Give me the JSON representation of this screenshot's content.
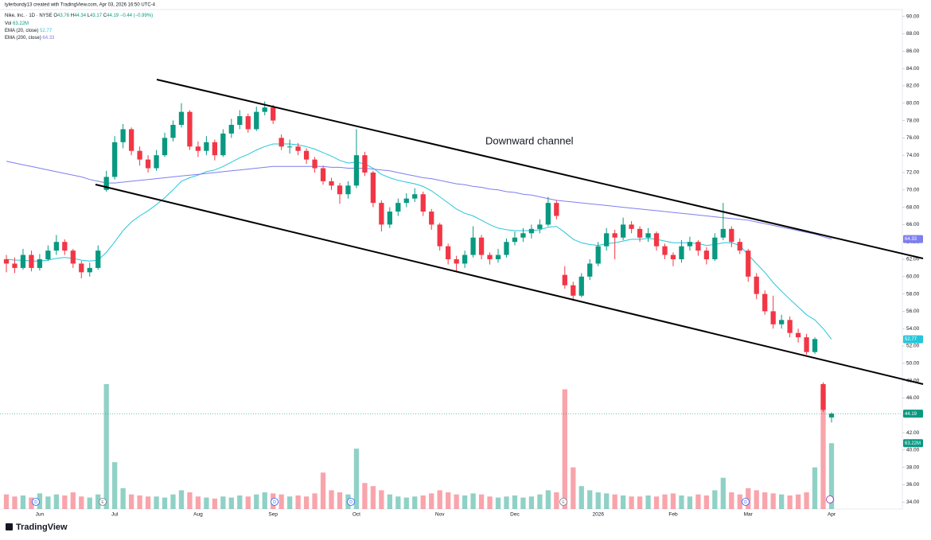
{
  "header": {
    "credit": "tylerbundy13 created with TradingView.com, Apr 03, 2026 16:50 UTC-4",
    "symbol": "Nike, Inc. · 1D · NYSE",
    "o": "O",
    "h": "H",
    "l": "L",
    "c": "C",
    "change": "−0.44 (−0.99%)",
    "brand": "TradingView"
  },
  "events": [
    "D",
    "E",
    "D",
    "D",
    "E",
    "D"
  ],
  "chart_data": {
    "type": "candlestick",
    "annotation": "Downward channel",
    "up_color": "#089981",
    "down_color": "#f23645",
    "categories": [
      null,
      null,
      null,
      null,
      "Jun",
      null,
      null,
      null,
      null,
      null,
      null,
      null,
      null,
      "Jul",
      null,
      null,
      null,
      null,
      null,
      null,
      null,
      null,
      null,
      "Aug",
      null,
      null,
      null,
      null,
      null,
      null,
      null,
      null,
      "Sep",
      null,
      null,
      null,
      null,
      null,
      null,
      null,
      null,
      null,
      "Oct",
      null,
      null,
      null,
      null,
      null,
      null,
      null,
      null,
      null,
      "Nov",
      null,
      null,
      null,
      null,
      null,
      null,
      null,
      null,
      "Dec",
      null,
      null,
      null,
      null,
      null,
      null,
      null,
      null,
      null,
      "2026",
      null,
      null,
      null,
      null,
      null,
      null,
      null,
      null,
      "Feb",
      null,
      null,
      null,
      null,
      null,
      null,
      null,
      null,
      "Mar",
      null,
      null,
      null,
      null,
      null,
      null,
      null,
      null,
      null,
      "Apr"
    ],
    "open": [
      62.0,
      61.5,
      61.0,
      62.5,
      61.0,
      62.0,
      63.0,
      64.0,
      63.0,
      61.5,
      60.5,
      61.0,
      70.0,
      71.5,
      75.5,
      77.0,
      74.5,
      73.5,
      72.5,
      74.0,
      76.0,
      77.5,
      79.0,
      75.0,
      74.5,
      75.5,
      74.0,
      76.5,
      77.5,
      78.5,
      77.0,
      79.0,
      79.5,
      76.0,
      75.0,
      75.0,
      74.5,
      73.5,
      72.5,
      71.0,
      70.5,
      69.5,
      70.5,
      74.0,
      72.0,
      68.5,
      66.0,
      67.5,
      68.5,
      69.0,
      69.5,
      67.5,
      66.0,
      63.5,
      62.0,
      61.5,
      62.5,
      64.5,
      62.5,
      62.0,
      62.5,
      64.0,
      64.5,
      65.0,
      65.5,
      66.0,
      68.5,
      60.2,
      59.0,
      57.8,
      60.0,
      61.5,
      63.5,
      65.0,
      64.5,
      66.0,
      65.5,
      64.5,
      65.0,
      63.5,
      62.5,
      62.0,
      63.5,
      64.0,
      63.0,
      62.0,
      64.5,
      65.5,
      64.0,
      63.0,
      60.0,
      58.0,
      56.0,
      54.5,
      55.0,
      53.5,
      53.0,
      51.3,
      47.6,
      43.76
    ],
    "high": [
      62.5,
      62.2,
      63.2,
      63.0,
      62.6,
      63.6,
      64.8,
      64.3,
      63.2,
      61.8,
      61.6,
      63.6,
      72.2,
      76.2,
      77.6,
      77.2,
      75.0,
      74.0,
      74.6,
      76.6,
      78.0,
      80.0,
      79.2,
      75.6,
      76.2,
      75.8,
      77.0,
      78.2,
      79.2,
      78.8,
      79.6,
      80.2,
      79.8,
      76.4,
      75.8,
      75.4,
      74.8,
      73.8,
      72.8,
      71.4,
      70.8,
      71.0,
      77.0,
      74.4,
      72.2,
      68.8,
      68.0,
      69.0,
      69.6,
      70.2,
      69.8,
      67.8,
      66.2,
      63.8,
      62.4,
      63.0,
      65.8,
      64.8,
      62.8,
      63.2,
      64.4,
      65.2,
      65.6,
      66.0,
      66.6,
      69.2,
      68.8,
      61.2,
      59.4,
      60.4,
      62.0,
      64.0,
      65.6,
      65.4,
      66.8,
      66.4,
      65.8,
      65.6,
      65.2,
      63.8,
      62.8,
      64.2,
      64.6,
      64.2,
      63.4,
      65.0,
      68.5,
      65.8,
      64.4,
      63.2,
      60.4,
      58.4,
      57.8,
      55.6,
      55.4,
      54.0,
      53.4,
      53.0,
      47.8,
      44.34
    ],
    "low": [
      60.5,
      60.4,
      60.8,
      60.6,
      60.7,
      61.8,
      62.5,
      62.5,
      61.0,
      59.8,
      60.0,
      60.8,
      69.8,
      71.2,
      74.8,
      74.0,
      72.8,
      72.0,
      72.2,
      73.8,
      75.6,
      77.2,
      74.6,
      73.8,
      74.0,
      73.4,
      73.8,
      76.0,
      77.0,
      76.6,
      76.8,
      78.6,
      77.6,
      74.6,
      74.2,
      74.0,
      73.0,
      72.0,
      70.6,
      70.0,
      68.4,
      69.0,
      70.2,
      71.6,
      68.0,
      65.2,
      65.6,
      67.0,
      68.0,
      68.6,
      67.0,
      65.4,
      63.0,
      61.4,
      60.6,
      61.0,
      62.2,
      62.0,
      61.4,
      61.6,
      62.2,
      63.6,
      64.0,
      64.4,
      65.0,
      65.8,
      66.6,
      58.6,
      57.2,
      57.6,
      59.6,
      61.2,
      63.0,
      62.0,
      64.2,
      65.0,
      64.0,
      64.0,
      63.0,
      62.0,
      61.2,
      61.6,
      63.0,
      62.4,
      61.4,
      61.8,
      64.2,
      63.4,
      62.6,
      59.4,
      57.4,
      55.6,
      54.0,
      54.0,
      53.0,
      52.4,
      51.0,
      51.1,
      44.4,
      43.17
    ],
    "close": [
      61.5,
      61.0,
      62.5,
      61.0,
      62.0,
      63.0,
      64.0,
      63.0,
      61.5,
      60.5,
      61.0,
      63.0,
      71.5,
      75.5,
      77.0,
      74.5,
      73.5,
      72.5,
      74.0,
      76.0,
      77.5,
      79.0,
      75.0,
      74.5,
      75.5,
      74.0,
      76.5,
      77.5,
      78.5,
      77.0,
      79.0,
      79.5,
      78.0,
      75.0,
      75.0,
      74.5,
      73.5,
      72.5,
      71.0,
      70.5,
      69.5,
      70.5,
      74.0,
      72.0,
      68.5,
      66.0,
      67.5,
      68.5,
      69.0,
      69.5,
      67.5,
      66.0,
      63.5,
      62.0,
      61.5,
      62.5,
      64.5,
      62.5,
      62.0,
      62.5,
      64.0,
      64.5,
      65.0,
      65.5,
      66.0,
      68.5,
      67.0,
      59.0,
      57.8,
      60.0,
      61.5,
      63.5,
      65.0,
      64.5,
      66.0,
      65.5,
      64.5,
      65.0,
      63.5,
      62.5,
      62.0,
      63.5,
      64.0,
      63.0,
      62.0,
      64.5,
      65.5,
      64.0,
      63.0,
      60.0,
      58.0,
      56.0,
      54.5,
      55.0,
      53.5,
      53.0,
      51.3,
      52.8,
      44.63,
      44.19
    ],
    "series": [
      {
        "name": "EMA (20, close)",
        "color": "#26c6da",
        "values": [
          62.0,
          61.9,
          61.9,
          61.8,
          61.8,
          61.9,
          62.1,
          62.2,
          62.1,
          61.9,
          61.8,
          61.9,
          62.8,
          64.0,
          65.3,
          66.3,
          67.0,
          67.6,
          68.3,
          69.1,
          70.0,
          71.0,
          71.4,
          71.7,
          72.1,
          72.3,
          72.7,
          73.2,
          73.7,
          74.1,
          74.6,
          75.0,
          75.3,
          75.3,
          75.3,
          75.2,
          75.0,
          74.7,
          74.3,
          73.9,
          73.4,
          73.1,
          73.2,
          73.0,
          72.5,
          71.8,
          71.4,
          71.1,
          70.9,
          70.7,
          70.4,
          69.9,
          69.2,
          68.5,
          67.8,
          67.3,
          67.0,
          66.5,
          66.0,
          65.6,
          65.4,
          65.3,
          65.3,
          65.3,
          65.4,
          65.7,
          65.8,
          65.1,
          64.3,
          63.9,
          63.7,
          63.6,
          63.8,
          63.9,
          64.1,
          64.3,
          64.3,
          64.4,
          64.3,
          64.1,
          63.9,
          63.9,
          63.9,
          63.8,
          63.6,
          63.7,
          63.9,
          63.9,
          63.6,
          62.5,
          61.5,
          60.5,
          59.3,
          58.3,
          57.4,
          56.5,
          55.6,
          55.0,
          54.0,
          52.77
        ]
      },
      {
        "name": "EMA (200, close)",
        "color": "#7e7ef0",
        "values": [
          73.3,
          73.1,
          72.9,
          72.7,
          72.5,
          72.3,
          72.1,
          71.9,
          71.7,
          71.5,
          71.2,
          71.0,
          70.8,
          70.8,
          70.9,
          71.0,
          71.1,
          71.2,
          71.3,
          71.4,
          71.5,
          71.6,
          71.7,
          71.8,
          71.9,
          72.0,
          72.1,
          72.2,
          72.3,
          72.4,
          72.5,
          72.6,
          72.7,
          72.7,
          72.7,
          72.7,
          72.7,
          72.7,
          72.7,
          72.6,
          72.6,
          72.5,
          72.5,
          72.5,
          72.4,
          72.3,
          72.2,
          72.0,
          71.8,
          71.6,
          71.4,
          71.3,
          71.1,
          70.9,
          70.7,
          70.6,
          70.4,
          70.3,
          70.1,
          70.0,
          69.8,
          69.7,
          69.5,
          69.4,
          69.2,
          69.0,
          68.8,
          68.7,
          68.6,
          68.5,
          68.4,
          68.3,
          68.2,
          68.1,
          68.0,
          67.9,
          67.8,
          67.7,
          67.6,
          67.5,
          67.4,
          67.3,
          67.2,
          67.1,
          67.0,
          66.9,
          66.8,
          66.7,
          66.6,
          66.5,
          66.3,
          66.1,
          65.9,
          65.7,
          65.5,
          65.3,
          65.1,
          64.9,
          64.6,
          64.33
        ]
      }
    ],
    "volume": {
      "name": "Vol",
      "axis": "y2",
      "last_label": "63.22M",
      "values": [
        14,
        12,
        13,
        11,
        15,
        12,
        14,
        13,
        16,
        12,
        11,
        14,
        120,
        45,
        20,
        14,
        13,
        12,
        12,
        11,
        14,
        18,
        16,
        12,
        11,
        10,
        12,
        11,
        13,
        12,
        14,
        16,
        15,
        14,
        12,
        13,
        12,
        15,
        35,
        18,
        16,
        14,
        58,
        25,
        22,
        18,
        14,
        12,
        11,
        12,
        13,
        15,
        18,
        16,
        14,
        13,
        15,
        14,
        12,
        11,
        12,
        13,
        11,
        12,
        14,
        18,
        16,
        115,
        40,
        22,
        18,
        16,
        15,
        14,
        13,
        12,
        12,
        13,
        12,
        14,
        15,
        13,
        12,
        14,
        13,
        18,
        30,
        16,
        14,
        20,
        18,
        16,
        15,
        14,
        13,
        14,
        16,
        40,
        115,
        63.22
      ]
    },
    "ylim": [
      33.2,
      90.8
    ],
    "y2lim": [
      0,
      480
    ],
    "yticks": [
      {
        "value": 90,
        "label": "90.00"
      },
      {
        "value": 88,
        "label": "88.00"
      },
      {
        "value": 86,
        "label": "86.00"
      },
      {
        "value": 84,
        "label": "84.00"
      },
      {
        "value": 82,
        "label": "82.00"
      },
      {
        "value": 80,
        "label": "80.00"
      },
      {
        "value": 78,
        "label": "78.00"
      },
      {
        "value": 76,
        "label": "76.00"
      },
      {
        "value": 74,
        "label": "74.00"
      },
      {
        "value": 72,
        "label": "72.00"
      },
      {
        "value": 70,
        "label": "70.00"
      },
      {
        "value": 68,
        "label": "68.00"
      },
      {
        "value": 66,
        "label": "66.00"
      },
      {
        "value": 64,
        "label": "64.00"
      },
      {
        "value": 62,
        "label": "62.00"
      },
      {
        "value": 60,
        "label": "60.00"
      },
      {
        "value": 58,
        "label": "58.00"
      },
      {
        "value": 56,
        "label": "56.00"
      },
      {
        "value": 54,
        "label": "54.00"
      },
      {
        "value": 52,
        "label": "52.00"
      },
      {
        "value": 50,
        "label": "50.00"
      },
      {
        "value": 48,
        "label": "48.00"
      },
      {
        "value": 46,
        "label": "46.00"
      },
      {
        "value": 44,
        "label": "44.00"
      },
      {
        "value": 42,
        "label": "42.00"
      },
      {
        "value": 40,
        "label": "40.00"
      },
      {
        "value": 38,
        "label": "38.00"
      },
      {
        "value": 36,
        "label": "36.00"
      },
      {
        "value": 34,
        "label": "34.00"
      }
    ]
  }
}
